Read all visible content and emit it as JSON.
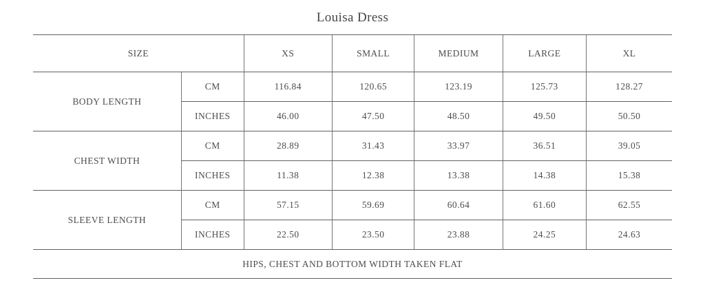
{
  "title": "Louisa Dress",
  "table": {
    "header": {
      "size_label": "SIZE",
      "columns": [
        "XS",
        "SMALL",
        "MEDIUM",
        "LARGE",
        "XL"
      ]
    },
    "rows": [
      {
        "label": "BODY LENGTH",
        "units": [
          {
            "unit": "CM",
            "values": [
              "116.84",
              "120.65",
              "123.19",
              "125.73",
              "128.27"
            ]
          },
          {
            "unit": "INCHES",
            "values": [
              "46.00",
              "47.50",
              "48.50",
              "49.50",
              "50.50"
            ]
          }
        ]
      },
      {
        "label": "CHEST WIDTH",
        "units": [
          {
            "unit": "CM",
            "values": [
              "28.89",
              "31.43",
              "33.97",
              "36.51",
              "39.05"
            ]
          },
          {
            "unit": "INCHES",
            "values": [
              "11.38",
              "12.38",
              "13.38",
              "14.38",
              "15.38"
            ]
          }
        ]
      },
      {
        "label": "SLEEVE LENGTH",
        "units": [
          {
            "unit": "CM",
            "values": [
              "57.15",
              "59.69",
              "60.64",
              "61.60",
              "62.55"
            ]
          },
          {
            "unit": "INCHES",
            "values": [
              "22.50",
              "23.50",
              "23.88",
              "24.25",
              "24.63"
            ]
          }
        ]
      }
    ],
    "footer_note": "HIPS, CHEST AND BOTTOM WIDTH TAKEN FLAT"
  },
  "colors": {
    "text": "#4d4d50",
    "border": "#616163",
    "background": "#ffffff"
  }
}
